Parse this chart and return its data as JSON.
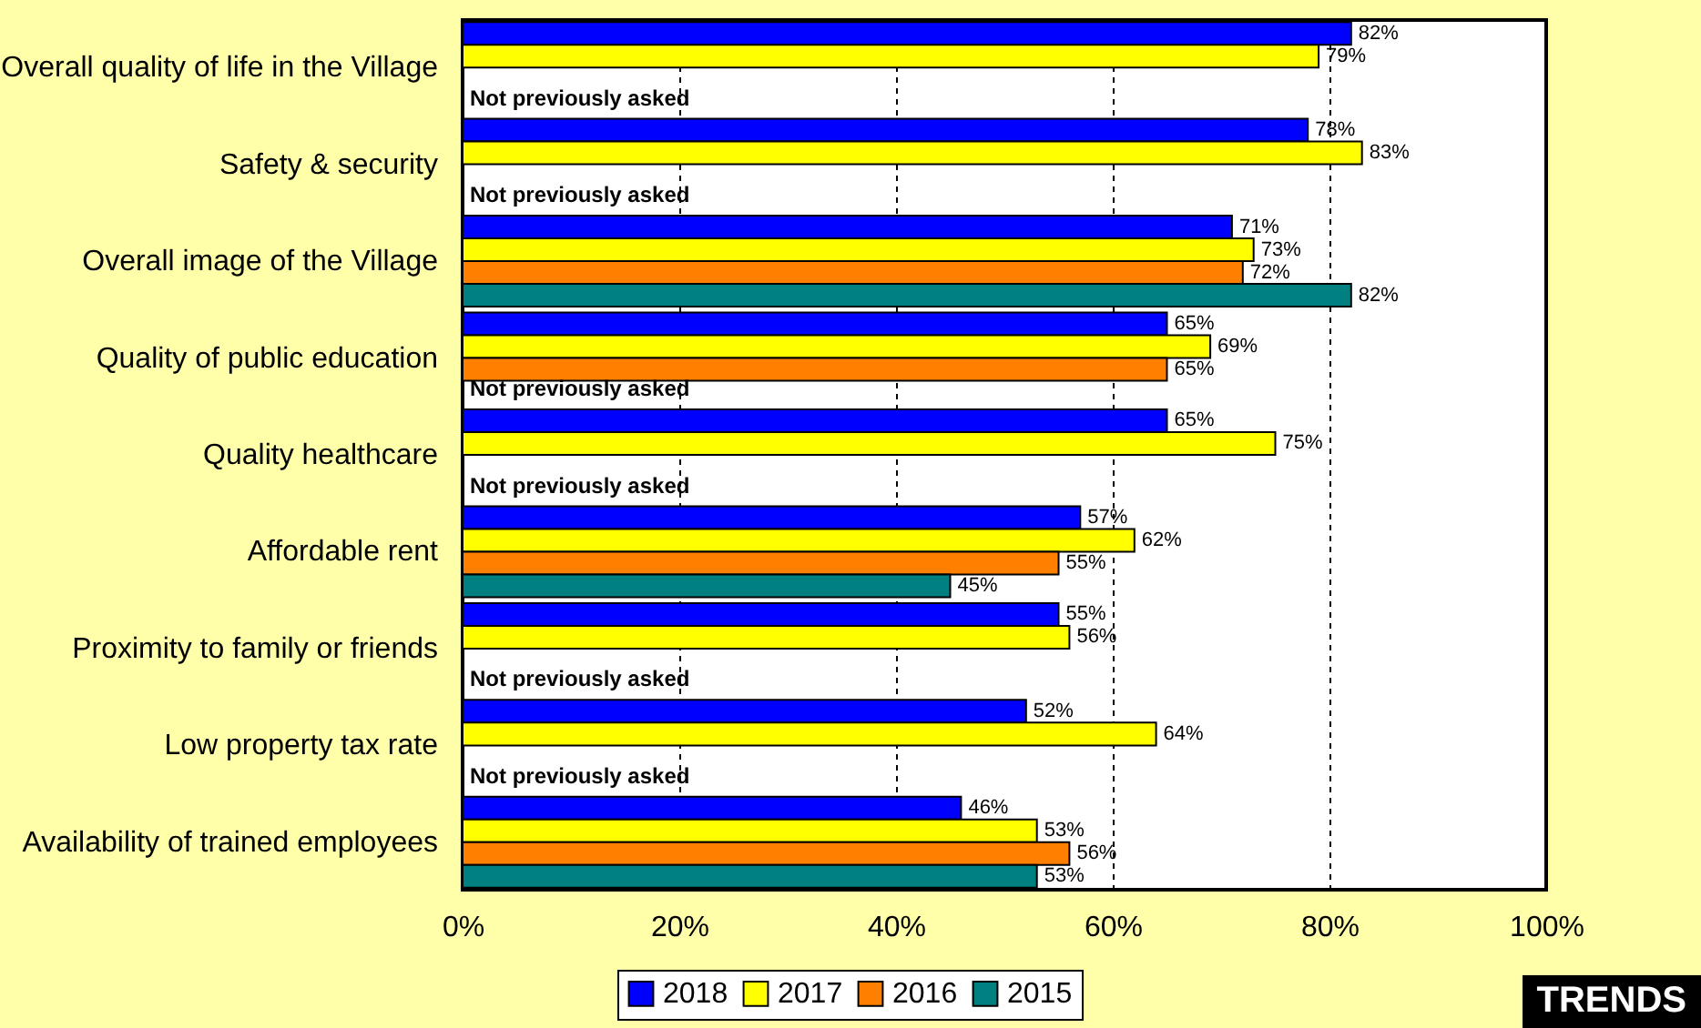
{
  "chart_data": {
    "type": "bar",
    "orientation": "horizontal",
    "categories": [
      "Overall quality of life in the Village",
      "Safety & security",
      "Overall image of the Village",
      "Quality of public education",
      "Quality healthcare",
      "Affordable rent",
      "Proximity to family or friends",
      "Low property tax rate",
      "Availability of trained employees"
    ],
    "series": [
      {
        "name": "2018",
        "color": "#0000ff",
        "values": [
          82,
          78,
          71,
          65,
          65,
          57,
          55,
          52,
          46
        ],
        "value_labels": [
          "82%",
          "78%",
          "71%",
          "65%",
          "65%",
          "57%",
          "55%",
          "52%",
          "46%"
        ]
      },
      {
        "name": "2017",
        "color": "#ffff00",
        "values": [
          79,
          83,
          73,
          69,
          75,
          62,
          56,
          64,
          53
        ],
        "value_labels": [
          "79%",
          "83%",
          "73%",
          "69%",
          "75%",
          "62%",
          "56%",
          "64%",
          "53%"
        ]
      },
      {
        "name": "2016",
        "color": "#ff8000",
        "values": [
          null,
          null,
          72,
          65,
          null,
          55,
          null,
          null,
          56
        ],
        "value_labels": [
          null,
          null,
          "72%",
          "65%",
          null,
          "55%",
          null,
          null,
          "56%"
        ]
      },
      {
        "name": "2015",
        "color": "#008080",
        "values": [
          null,
          null,
          82,
          null,
          null,
          45,
          null,
          null,
          53
        ],
        "value_labels": [
          null,
          null,
          "82%",
          null,
          null,
          "45%",
          null,
          null,
          "53%"
        ]
      }
    ],
    "xlim": [
      0,
      100
    ],
    "xticks": [
      {
        "value": 0,
        "label": "0%"
      },
      {
        "value": 20,
        "label": "20%"
      },
      {
        "value": 40,
        "label": "40%"
      },
      {
        "value": 60,
        "label": "60%"
      },
      {
        "value": 80,
        "label": "80%"
      },
      {
        "value": 100,
        "label": "100%"
      }
    ],
    "grid": "x",
    "legend": "bottom",
    "annotations": [
      {
        "text": "Not previously asked",
        "y": "Overall quality of life in the Village"
      },
      {
        "text": "Not previously asked",
        "y": "Safety & security"
      },
      {
        "text": "Not previously asked",
        "y": "Quality of public education"
      },
      {
        "text": "Not previously asked",
        "y": "Quality healthcare"
      },
      {
        "text": "Not previously asked",
        "y": "Proximity to family or friends"
      },
      {
        "text": "Not previously asked",
        "y": "Low property tax rate"
      },
      "TRENDS"
    ]
  }
}
